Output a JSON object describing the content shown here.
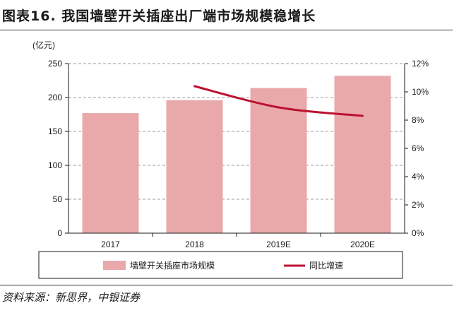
{
  "figure": {
    "title": "图表16. 我国墙壁开关插座出厂端市场规模稳增长",
    "source": "资料来源：新思界，中银证券"
  },
  "chart_data": {
    "type": "bar",
    "categories": [
      "2017",
      "2018",
      "2019E",
      "2020E"
    ],
    "series": [
      {
        "name": "墙壁开关插座市场规模",
        "type": "bar",
        "axis": "left",
        "values": [
          177,
          196,
          214,
          232
        ]
      },
      {
        "name": "同比增速",
        "type": "line",
        "axis": "right",
        "values": [
          null,
          10.4,
          8.9,
          8.3
        ]
      }
    ],
    "ylabel": "(亿元)",
    "ylim": [
      0,
      250
    ],
    "y_ticks": [
      "0",
      "50",
      "100",
      "150",
      "200",
      "250"
    ],
    "y2lim": [
      0,
      12
    ],
    "y2_ticks": [
      "0%",
      "2%",
      "4%",
      "6%",
      "8%",
      "10%",
      "12%"
    ],
    "grid": "horizontal dashed",
    "legend_position": "bottom",
    "colors": {
      "bar": "#e9a9ab",
      "line": "#bc1230",
      "grid": "#9a9a9a",
      "axis": "#1a1a1a"
    }
  }
}
